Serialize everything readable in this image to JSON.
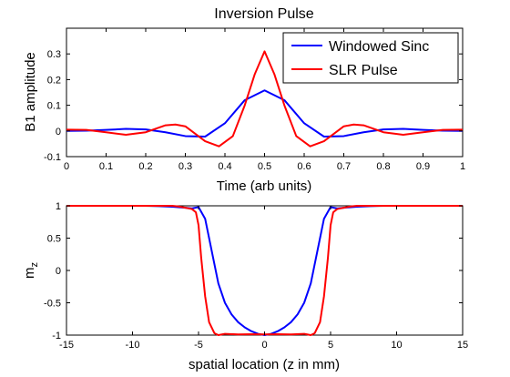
{
  "chart_data": [
    {
      "type": "line",
      "title": "Inversion Pulse",
      "xlabel": "Time (arb units)",
      "ylabel": "B1 amplitude",
      "xlim": [
        0,
        1
      ],
      "ylim": [
        -0.1,
        0.4
      ],
      "xticks": [
        "0",
        "0.1",
        "0.2",
        "0.3",
        "0.4",
        "0.5",
        "0.6",
        "0.7",
        "0.8",
        "0.9",
        "1"
      ],
      "yticks": [
        "-0.1",
        "0",
        "0.1",
        "0.2",
        "0.3"
      ],
      "grid": false,
      "legend": "top-right",
      "series": [
        {
          "name": "Windowed Sinc",
          "color": "#0000ff",
          "x": [
            0,
            0.05,
            0.1,
            0.15,
            0.2,
            0.25,
            0.3,
            0.35,
            0.4,
            0.45,
            0.5,
            0.55,
            0.6,
            0.65,
            0.7,
            0.75,
            0.8,
            0.85,
            0.9,
            0.95,
            1
          ],
          "y": [
            0,
            0.001,
            0.004,
            0.008,
            0.006,
            -0.005,
            -0.02,
            -0.022,
            0.03,
            0.12,
            0.158,
            0.12,
            0.03,
            -0.022,
            -0.02,
            -0.005,
            0.006,
            0.008,
            0.004,
            0.001,
            0
          ]
        },
        {
          "name": "SLR Pulse",
          "color": "#ff0000",
          "x": [
            0,
            0.05,
            0.1,
            0.15,
            0.2,
            0.25,
            0.275,
            0.3,
            0.35,
            0.385,
            0.42,
            0.45,
            0.475,
            0.5,
            0.525,
            0.55,
            0.58,
            0.615,
            0.65,
            0.7,
            0.725,
            0.75,
            0.8,
            0.85,
            0.9,
            0.95,
            1
          ],
          "y": [
            0.005,
            0.004,
            -0.005,
            -0.015,
            -0.005,
            0.022,
            0.025,
            0.018,
            -0.04,
            -0.06,
            -0.02,
            0.1,
            0.22,
            0.31,
            0.22,
            0.1,
            -0.02,
            -0.06,
            -0.04,
            0.018,
            0.025,
            0.022,
            -0.005,
            -0.015,
            -0.005,
            0.004,
            0.005
          ]
        }
      ]
    },
    {
      "type": "line",
      "title": "",
      "xlabel": "spatial location (z in mm)",
      "ylabel": "m",
      "ylabel_sub": "z",
      "xlim": [
        -15,
        15
      ],
      "ylim": [
        -1,
        1
      ],
      "xticks": [
        "-15",
        "-10",
        "-5",
        "0",
        "5",
        "10",
        "15"
      ],
      "yticks": [
        "-1",
        "-0.5",
        "0",
        "0.5",
        "1"
      ],
      "grid": false,
      "series": [
        {
          "name": "Windowed Sinc",
          "color": "#0000ff",
          "x": [
            -15,
            -9,
            -8,
            -7,
            -6,
            -5.5,
            -5,
            -4.5,
            -4,
            -3.5,
            -3,
            -2.5,
            -2,
            -1.5,
            -1,
            -0.5,
            0,
            0.5,
            1,
            1.5,
            2,
            2.5,
            3,
            3.5,
            4,
            4.5,
            5,
            5.5,
            6,
            7,
            8,
            9,
            15
          ],
          "y": [
            1,
            1,
            0.995,
            0.985,
            0.97,
            0.96,
            0.98,
            0.8,
            0.3,
            -0.2,
            -0.5,
            -0.68,
            -0.8,
            -0.88,
            -0.94,
            -0.98,
            -1,
            -0.98,
            -0.94,
            -0.88,
            -0.8,
            -0.68,
            -0.5,
            -0.2,
            0.3,
            0.8,
            0.98,
            0.96,
            0.97,
            0.985,
            0.995,
            1,
            1
          ]
        },
        {
          "name": "SLR Pulse",
          "color": "#ff0000",
          "x": [
            -15,
            -7,
            -6.5,
            -6,
            -5.5,
            -5.2,
            -5,
            -4.8,
            -4.5,
            -4.2,
            -3.8,
            -3.5,
            -3,
            -2,
            -1,
            0,
            1,
            2,
            3,
            3.5,
            3.8,
            4.2,
            4.5,
            4.8,
            5,
            5.2,
            5.5,
            6,
            6.5,
            7,
            15
          ],
          "y": [
            1,
            1,
            0.99,
            0.97,
            0.95,
            0.9,
            0.7,
            0.2,
            -0.4,
            -0.8,
            -0.97,
            -1.0,
            -0.98,
            -0.99,
            -0.985,
            -0.99,
            -0.985,
            -0.99,
            -0.98,
            -1.0,
            -0.97,
            -0.8,
            -0.4,
            0.2,
            0.7,
            0.9,
            0.95,
            0.97,
            0.99,
            1,
            1
          ]
        }
      ]
    }
  ]
}
